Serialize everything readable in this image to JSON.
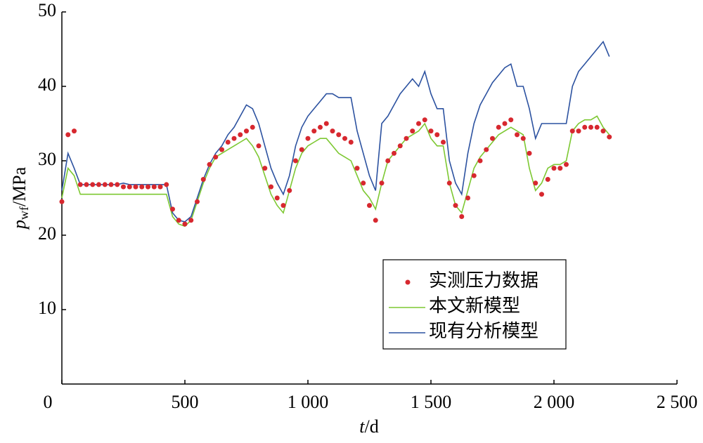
{
  "chart_data": {
    "type": "line",
    "xlabel": {
      "main": "t",
      "unit": "/d"
    },
    "ylabel": {
      "main": "p",
      "sub": "wf",
      "unit": "/MPa"
    },
    "xlim": [
      0,
      2500
    ],
    "xticks": [
      0,
      500,
      {
        "value": 1000,
        "label": "1 000"
      },
      {
        "value": 1500,
        "label": "1 500"
      },
      {
        "value": 2000,
        "label": "2 000"
      },
      {
        "value": 2500,
        "label": "2 500"
      }
    ],
    "ylim": [
      0,
      50
    ],
    "yticks": [
      10,
      20,
      30,
      40,
      50
    ],
    "legend": "lower-right",
    "x": [
      0,
      25,
      50,
      75,
      100,
      125,
      150,
      175,
      200,
      225,
      250,
      275,
      300,
      325,
      350,
      375,
      400,
      425,
      450,
      475,
      500,
      525,
      550,
      575,
      600,
      625,
      650,
      675,
      700,
      725,
      750,
      775,
      800,
      825,
      850,
      875,
      900,
      925,
      950,
      975,
      1000,
      1025,
      1050,
      1075,
      1100,
      1125,
      1150,
      1175,
      1200,
      1225,
      1250,
      1275,
      1300,
      1325,
      1350,
      1375,
      1400,
      1425,
      1450,
      1475,
      1500,
      1525,
      1550,
      1575,
      1600,
      1625,
      1650,
      1675,
      1700,
      1725,
      1750,
      1775,
      1800,
      1825,
      1850,
      1875,
      1900,
      1925,
      1950,
      1975,
      2000,
      2025,
      2050,
      2075,
      2100,
      2125,
      2150,
      2175,
      2200,
      2225
    ],
    "series": [
      {
        "name": "实测压力数据",
        "type": "scatter",
        "color": "#d7282f",
        "values": [
          24.5,
          33.5,
          34,
          26.8,
          26.8,
          26.8,
          26.8,
          26.8,
          26.8,
          26.8,
          26.5,
          26.5,
          26.5,
          26.5,
          26.5,
          26.5,
          26.5,
          26.8,
          23.5,
          22,
          21.5,
          22,
          24.5,
          27.5,
          29.5,
          30.5,
          31.5,
          32.5,
          33,
          33.5,
          34,
          34.5,
          32,
          29,
          26.5,
          25,
          24,
          26,
          30,
          31.5,
          33,
          34,
          34.5,
          35,
          34,
          33.5,
          33,
          32.5,
          29,
          27,
          24,
          22,
          27,
          30,
          31,
          32,
          33,
          34,
          35,
          35.5,
          34,
          33.5,
          32.5,
          27,
          24,
          22.5,
          25,
          28,
          30,
          31.5,
          33,
          34.5,
          35,
          35.5,
          33.5,
          33,
          31,
          27,
          25.5,
          27.5,
          29,
          29,
          29.5,
          34,
          34,
          34.5,
          34.5,
          34.5,
          34,
          33.2
        ]
      },
      {
        "name": "本文新模型",
        "type": "line",
        "color": "#7dc832",
        "values": [
          25,
          29,
          28,
          25.5,
          25.5,
          25.5,
          25.5,
          25.5,
          25.5,
          25.5,
          25.5,
          25.5,
          25.5,
          25.5,
          25.5,
          25.5,
          25.5,
          25.5,
          22.5,
          21.5,
          21.2,
          22,
          24.5,
          27,
          29,
          30.5,
          31,
          31.5,
          32,
          32.5,
          33,
          32,
          30.5,
          28,
          25.5,
          24,
          23,
          26,
          29,
          31,
          32,
          32.5,
          33,
          33,
          32,
          31,
          30.5,
          30,
          28,
          26,
          25,
          23.5,
          27,
          30,
          31,
          32,
          33,
          33.5,
          34,
          35,
          33,
          32,
          32,
          27,
          24,
          23,
          26,
          29,
          30.5,
          31.5,
          32.5,
          33.5,
          34,
          34.5,
          34,
          33.5,
          29,
          26,
          27,
          29,
          29.5,
          29.5,
          30,
          34,
          35,
          35.5,
          35.5,
          36,
          34.5,
          33.5
        ]
      },
      {
        "name": "现有分析模型",
        "type": "line",
        "color": "#2c52a0",
        "values": [
          26,
          31,
          29,
          26.8,
          26.8,
          26.8,
          26.8,
          26.8,
          26.8,
          26.8,
          27,
          26.8,
          26.8,
          26.8,
          26.8,
          26.8,
          26.8,
          26.8,
          23,
          22,
          21.8,
          22.5,
          25,
          27.5,
          29.5,
          31,
          32,
          33.5,
          34.5,
          36,
          37.5,
          37,
          35,
          32,
          29,
          27,
          25.5,
          28,
          32,
          34.5,
          36,
          37,
          38,
          39,
          39,
          38.5,
          38.5,
          38.5,
          34,
          31,
          28,
          26,
          35,
          36,
          37.5,
          39,
          40,
          41,
          40,
          42,
          39,
          37,
          37,
          30,
          27,
          25.5,
          31,
          35,
          37.5,
          39,
          40.5,
          41.5,
          42.5,
          43,
          40,
          40,
          37,
          33,
          35,
          35,
          35,
          35,
          35,
          40,
          42,
          43,
          44,
          45,
          46,
          44
        ]
      }
    ]
  }
}
